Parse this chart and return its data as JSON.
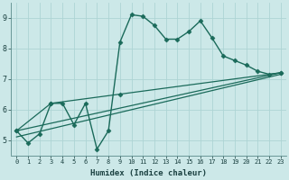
{
  "title": "",
  "xlabel": "Humidex (Indice chaleur)",
  "bg_color": "#cce8e8",
  "grid_color": "#add4d4",
  "line_color": "#1a6a5a",
  "xlim": [
    -0.5,
    23.5
  ],
  "ylim": [
    4.5,
    9.5
  ],
  "yticks": [
    5,
    6,
    7,
    8,
    9
  ],
  "xticks": [
    0,
    1,
    2,
    3,
    4,
    5,
    6,
    7,
    8,
    9,
    10,
    11,
    12,
    13,
    14,
    15,
    16,
    17,
    18,
    19,
    20,
    21,
    22,
    23
  ],
  "series": [
    {
      "x": [
        0,
        1,
        2,
        3,
        4,
        5,
        6,
        7,
        8,
        9,
        10,
        11,
        12,
        13,
        14,
        15,
        16,
        17,
        18,
        19,
        20,
        21,
        22,
        23
      ],
      "y": [
        5.3,
        4.9,
        5.2,
        6.2,
        6.2,
        5.5,
        6.2,
        4.7,
        5.3,
        8.2,
        9.1,
        9.05,
        8.75,
        8.3,
        8.3,
        8.55,
        8.9,
        8.35,
        7.75,
        7.6,
        7.45,
        7.25,
        7.15,
        7.2
      ],
      "marker": "D",
      "markersize": 2.5,
      "linewidth": 1.0
    },
    {
      "x": [
        0,
        23
      ],
      "y": [
        5.3,
        7.2
      ],
      "marker": null,
      "markersize": 0,
      "linewidth": 0.9
    },
    {
      "x": [
        0,
        3,
        9,
        23
      ],
      "y": [
        5.3,
        6.2,
        6.5,
        7.2
      ],
      "marker": "D",
      "markersize": 2.5,
      "linewidth": 0.9
    },
    {
      "x": [
        0,
        23
      ],
      "y": [
        5.1,
        7.15
      ],
      "marker": null,
      "markersize": 0,
      "linewidth": 0.9
    }
  ]
}
